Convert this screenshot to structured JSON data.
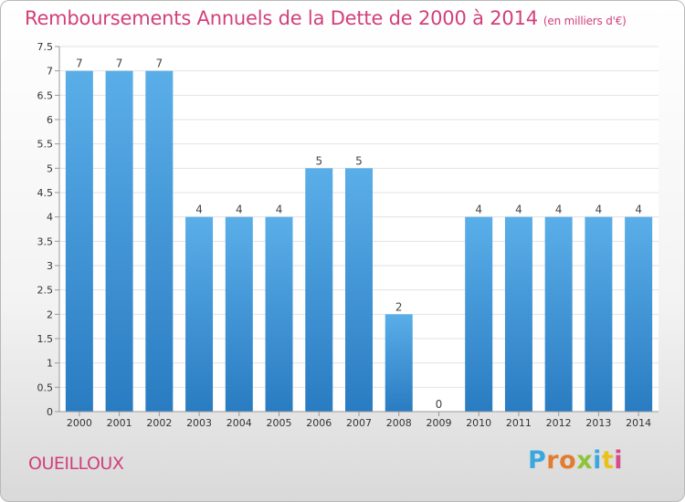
{
  "header": {
    "title": "Remboursements Annuels de la Dette de 2000 à 2014",
    "subtitle": "(en milliers d'€)"
  },
  "footer": {
    "commune": "OUEILLOUX",
    "logo_letters": [
      "P",
      "r",
      "o",
      "x",
      "i",
      "t",
      "i"
    ],
    "logo_colors": [
      "#3aa8df",
      "#e27c2e",
      "#e27c2e",
      "#8cc43a",
      "#3aa8df",
      "#e8c21a",
      "#d84a8a"
    ]
  },
  "chart_data": {
    "type": "bar",
    "title": "Remboursements Annuels de la Dette de 2000 à 2014",
    "subtitle": "(en milliers d'€)",
    "xlabel": "",
    "ylabel": "",
    "categories": [
      "2000",
      "2001",
      "2002",
      "2003",
      "2004",
      "2005",
      "2006",
      "2007",
      "2008",
      "2009",
      "2010",
      "2011",
      "2012",
      "2013",
      "2014"
    ],
    "values": [
      7,
      7,
      7,
      4,
      4,
      4,
      5,
      5,
      2,
      0,
      4,
      4,
      4,
      4,
      4
    ],
    "data_labels": [
      "7",
      "7",
      "7",
      "4",
      "4",
      "4",
      "5",
      "5",
      "2",
      "0",
      "4",
      "4",
      "4",
      "4",
      "4"
    ],
    "ylim": [
      0,
      7.5
    ],
    "yticks": [
      "0",
      "0.5",
      "1",
      "1.5",
      "2",
      "2.5",
      "3",
      "3.5",
      "4",
      "4.5",
      "5",
      "5.5",
      "6",
      "6.5",
      "7",
      "7.5"
    ],
    "grid": true,
    "colors": {
      "bar_top": "#5aaee8",
      "bar_bottom": "#2a7cc2",
      "axis": "#999999",
      "grid": "#e2e2e2",
      "tick_text": "#333333"
    }
  }
}
